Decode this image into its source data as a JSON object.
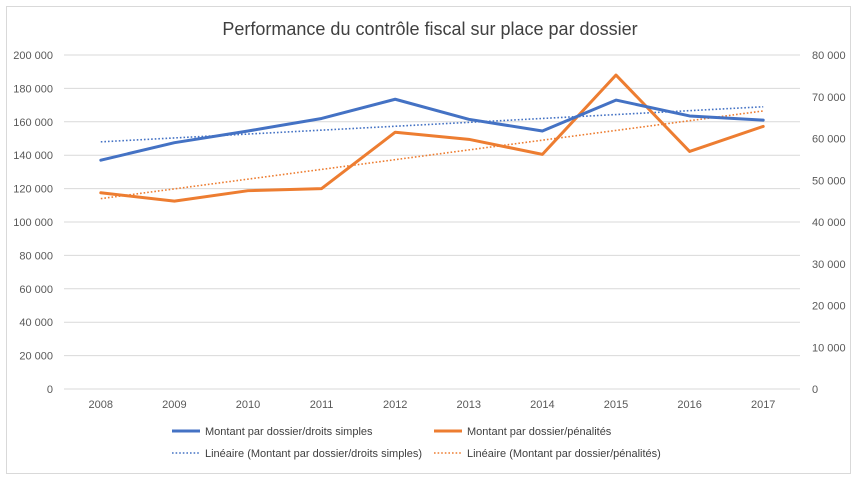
{
  "chart_data": {
    "type": "line",
    "title": "Performance du contrôle fiscal sur place par dossier",
    "categories": [
      "2008",
      "2009",
      "2010",
      "2011",
      "2012",
      "2013",
      "2014",
      "2015",
      "2016",
      "2017"
    ],
    "y_left": {
      "ylim": [
        0,
        200000
      ],
      "ticks": [
        "0",
        "20 000",
        "40 000",
        "60 000",
        "80 000",
        "100 000",
        "120 000",
        "140 000",
        "160 000",
        "180 000",
        "200 000"
      ]
    },
    "y_right": {
      "ylim": [
        0,
        80000
      ],
      "ticks": [
        "0",
        "10 000",
        "20 000",
        "30 000",
        "40 000",
        "50 000",
        "60 000",
        "70 000",
        "80 000"
      ]
    },
    "series": [
      {
        "name": "Montant par dossier/droits simples",
        "axis": "left",
        "color": "#4472C4",
        "style": "solid",
        "values": [
          137000,
          147500,
          154500,
          162000,
          173500,
          161500,
          154500,
          173000,
          163500,
          161000
        ]
      },
      {
        "name": "Montant par dossier/pénalités",
        "axis": "right",
        "color": "#ED7D31",
        "style": "solid",
        "values": [
          47000,
          45000,
          47500,
          48000,
          61500,
          59800,
          56200,
          75200,
          56900,
          62900
        ]
      },
      {
        "name": "Linéaire (Montant par dossier/droits simples)",
        "axis": "left",
        "color": "#4472C4",
        "style": "dotted",
        "trendline": [
          148000,
          169000
        ]
      },
      {
        "name": "Linéaire (Montant par dossier/pénalités)",
        "axis": "right",
        "color": "#ED7D31",
        "style": "dotted",
        "trendline": [
          45600,
          66600
        ]
      }
    ],
    "grid": true,
    "legend": "bottom"
  }
}
